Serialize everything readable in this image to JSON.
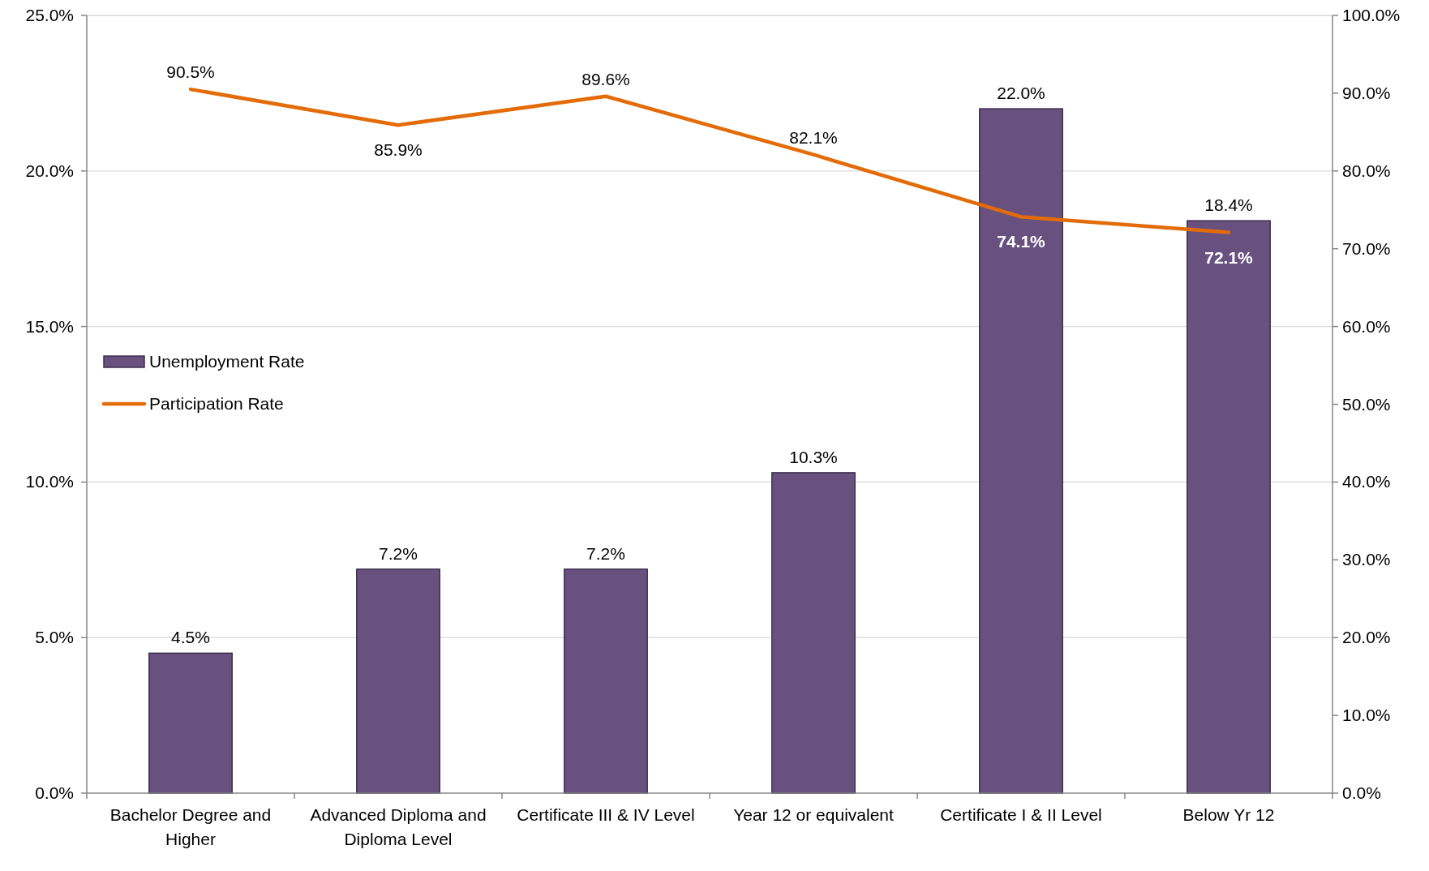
{
  "chart_data": {
    "type": "bar",
    "categories": [
      "Bachelor Degree and Higher",
      "Advanced Diploma and Diploma Level",
      "Certificate III & IV Level",
      "Year 12 or equivalent",
      "Certificate I & II Level",
      "Below Yr 12"
    ],
    "series": [
      {
        "name": "Unemployment Rate",
        "color": "#68507f",
        "values": [
          4.5,
          7.2,
          7.2,
          10.3,
          22.0,
          18.4
        ],
        "value_labels": [
          "4.5%",
          "7.2%",
          "7.2%",
          "10.3%",
          "22.0%",
          "18.4%"
        ]
      },
      {
        "name": "Participation Rate",
        "type": "line",
        "axis": "y2",
        "color": "#e36c09",
        "values": [
          90.5,
          85.9,
          89.6,
          82.1,
          74.1,
          72.1
        ],
        "value_labels": [
          "90.5%",
          "85.9%",
          "89.6%",
          "82.1%",
          "74.1%",
          "72.1%"
        ]
      }
    ],
    "ylim": [
      0,
      25
    ],
    "yticks": [
      {
        "value": 0,
        "label": "0.0%"
      },
      {
        "value": 5,
        "label": "5.0%"
      },
      {
        "value": 10,
        "label": "10.0%"
      },
      {
        "value": 15,
        "label": "15.0%"
      },
      {
        "value": 20,
        "label": "20.0%"
      },
      {
        "value": 25,
        "label": "25.0%"
      }
    ],
    "y2lim": [
      0,
      100
    ],
    "y2ticks": [
      {
        "value": 0,
        "label": "0.0%"
      },
      {
        "value": 10,
        "label": "10.0%"
      },
      {
        "value": 20,
        "label": "20.0%"
      },
      {
        "value": 30,
        "label": "30.0%"
      },
      {
        "value": 40,
        "label": "40.0%"
      },
      {
        "value": 50,
        "label": "50.0%"
      },
      {
        "value": 60,
        "label": "60.0%"
      },
      {
        "value": 70,
        "label": "70.0%"
      },
      {
        "value": 80,
        "label": "80.0%"
      },
      {
        "value": 90,
        "label": "90.0%"
      },
      {
        "value": 100,
        "label": "100.0%"
      }
    ],
    "grid": "y",
    "legend": "left",
    "marker": "none"
  }
}
